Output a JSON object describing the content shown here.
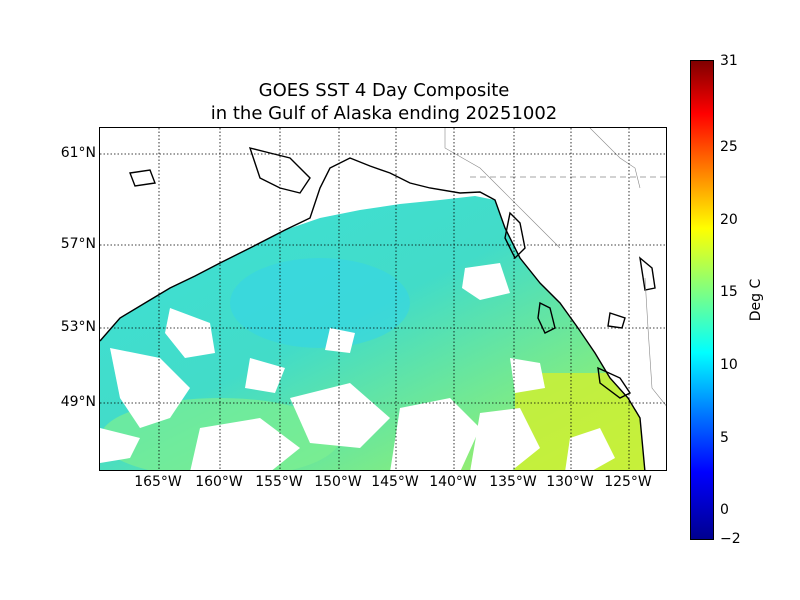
{
  "title": {
    "line1": "GOES SST 4 Day Composite",
    "line2": "in the Gulf of Alaska ending 20251002"
  },
  "latitude_labels": [
    "61°N",
    "57°N",
    "53°N",
    "49°N"
  ],
  "longitude_labels": [
    "165°W",
    "160°W",
    "155°W",
    "150°W",
    "145°W",
    "140°W",
    "135°W",
    "130°W",
    "125°W"
  ],
  "colorbar": {
    "label": "Deg C",
    "ticks": [
      "31",
      "25",
      "20",
      "15",
      "10",
      "5",
      "0",
      "−2"
    ],
    "min": -2,
    "max": 31,
    "colormap": "jet"
  },
  "colors": {
    "ocean_main": "#4fe6c8",
    "ocean_cool": "#33d8e8",
    "ocean_warm": "#a8f060",
    "ocean_hot": "#c8f03a",
    "cloud_mask": "#ffffff",
    "coastline": "#000000",
    "grid": "#000000"
  }
}
